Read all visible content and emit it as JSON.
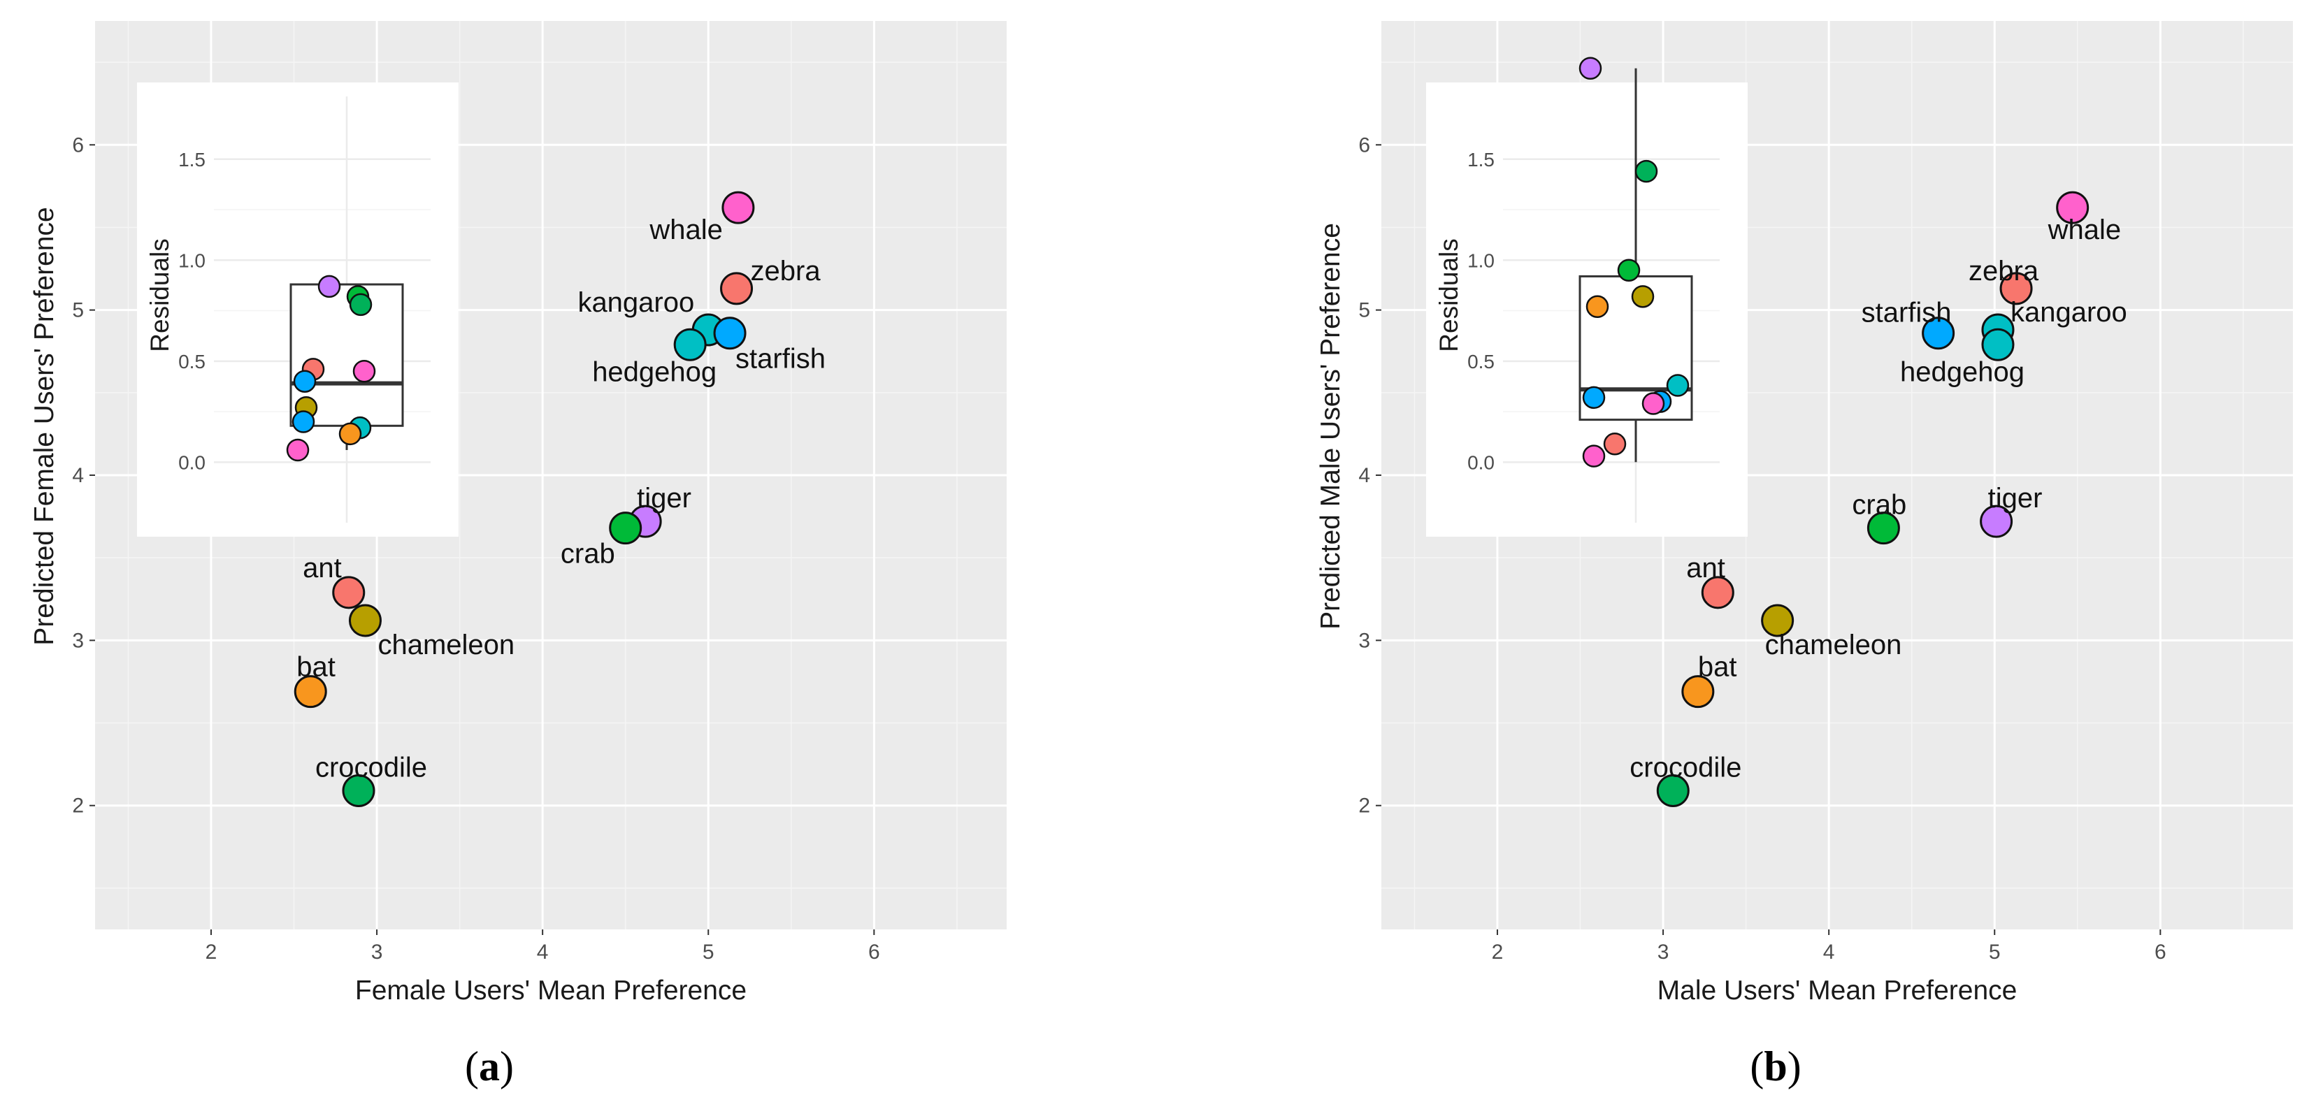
{
  "chart_data": [
    {
      "type": "scatter",
      "panel": "a",
      "title": "",
      "xlabel": "Female Users' Mean Preference",
      "ylabel": "Predicted Female Users' Preference",
      "xlim": [
        1.3,
        6.8
      ],
      "ylim": [
        1.25,
        6.75
      ],
      "xticks": [
        2,
        3,
        4,
        5,
        6
      ],
      "yticks": [
        2,
        3,
        4,
        5,
        6
      ],
      "points": [
        {
          "label": "whale",
          "x": 5.18,
          "y": 5.62,
          "color": "#FF61CC"
        },
        {
          "label": "zebra",
          "x": 5.17,
          "y": 5.13,
          "color": "#F8766D"
        },
        {
          "label": "kangaroo",
          "x": 5.0,
          "y": 4.88,
          "color": "#00BFC4"
        },
        {
          "label": "starfish",
          "x": 5.13,
          "y": 4.86,
          "color": "#00A9FF"
        },
        {
          "label": "hedgehog",
          "x": 4.89,
          "y": 4.79,
          "color": "#00BFC4"
        },
        {
          "label": "tiger",
          "x": 4.62,
          "y": 3.72,
          "color": "#C77CFF"
        },
        {
          "label": "crab",
          "x": 4.5,
          "y": 3.68,
          "color": "#00BA38"
        },
        {
          "label": "ant",
          "x": 2.83,
          "y": 3.29,
          "color": "#F8766D"
        },
        {
          "label": "chameleon",
          "x": 2.93,
          "y": 3.12,
          "color": "#B79F00"
        },
        {
          "label": "bat",
          "x": 2.6,
          "y": 2.69,
          "color": "#F8961E"
        },
        {
          "label": "crocodile",
          "x": 2.89,
          "y": 2.09,
          "color": "#00B159"
        }
      ],
      "inset": {
        "type": "box",
        "ylabel": "Residuals",
        "ylim": [
          -0.12,
          1.7
        ],
        "yticks": [
          0.0,
          0.5,
          1.0,
          1.5
        ],
        "box": {
          "whisker_low": 0.06,
          "q1": 0.18,
          "median": 0.39,
          "q3": 0.88,
          "whisker_high": 0.88
        },
        "points": [
          {
            "y": 0.87,
            "color": "#C77CFF",
            "jitter": -0.25
          },
          {
            "y": 0.82,
            "color": "#00BA38",
            "jitter": 0.16
          },
          {
            "y": 0.78,
            "color": "#00B159",
            "jitter": 0.2
          },
          {
            "y": 0.46,
            "color": "#F8766D",
            "jitter": -0.48
          },
          {
            "y": 0.45,
            "color": "#FF61CC",
            "jitter": 0.25
          },
          {
            "y": 0.4,
            "color": "#00A9FF",
            "jitter": -0.6
          },
          {
            "y": 0.27,
            "color": "#B79F00",
            "jitter": -0.58
          },
          {
            "y": 0.2,
            "color": "#00A9FF",
            "jitter": -0.62
          },
          {
            "y": 0.17,
            "color": "#00BFC4",
            "jitter": 0.19
          },
          {
            "y": 0.14,
            "color": "#F8961E",
            "jitter": 0.05
          },
          {
            "y": 0.06,
            "color": "#FF61CC",
            "jitter": -0.7
          }
        ]
      }
    },
    {
      "type": "scatter",
      "panel": "b",
      "title": "",
      "xlabel": "Male Users' Mean Preference",
      "ylabel": "Predicted Male Users' Preference",
      "xlim": [
        1.3,
        6.8
      ],
      "ylim": [
        1.25,
        6.75
      ],
      "xticks": [
        2,
        3,
        4,
        5,
        6
      ],
      "yticks": [
        2,
        3,
        4,
        5,
        6
      ],
      "points": [
        {
          "label": "whale",
          "x": 5.47,
          "y": 5.62,
          "color": "#FF61CC"
        },
        {
          "label": "zebra",
          "x": 5.13,
          "y": 5.13,
          "color": "#F8766D"
        },
        {
          "label": "kangaroo",
          "x": 5.02,
          "y": 4.88,
          "color": "#00BFC4"
        },
        {
          "label": "starfish",
          "x": 4.66,
          "y": 4.86,
          "color": "#00A9FF"
        },
        {
          "label": "hedgehog",
          "x": 5.02,
          "y": 4.79,
          "color": "#00BFC4"
        },
        {
          "label": "tiger",
          "x": 5.01,
          "y": 3.72,
          "color": "#C77CFF"
        },
        {
          "label": "crab",
          "x": 4.33,
          "y": 3.68,
          "color": "#00BA38"
        },
        {
          "label": "ant",
          "x": 3.33,
          "y": 3.29,
          "color": "#F8766D"
        },
        {
          "label": "chameleon",
          "x": 3.69,
          "y": 3.12,
          "color": "#B79F00"
        },
        {
          "label": "bat",
          "x": 3.21,
          "y": 2.69,
          "color": "#F8961E"
        },
        {
          "label": "crocodile",
          "x": 3.06,
          "y": 2.09,
          "color": "#00B159"
        }
      ],
      "inset": {
        "type": "box",
        "ylabel": "Residuals",
        "ylim": [
          -0.12,
          1.7
        ],
        "yticks": [
          0.0,
          0.5,
          1.0,
          1.5
        ],
        "box": {
          "whisker_low": 0.0,
          "q1": 0.21,
          "median": 0.36,
          "q3": 0.92,
          "whisker_high": 1.95
        },
        "points": [
          {
            "y": 1.95,
            "color": "#C77CFF",
            "jitter": -0.65
          },
          {
            "y": 1.44,
            "color": "#00B159",
            "jitter": 0.15
          },
          {
            "y": 0.95,
            "color": "#00BA38",
            "jitter": -0.1
          },
          {
            "y": 0.82,
            "color": "#B79F00",
            "jitter": 0.1
          },
          {
            "y": 0.77,
            "color": "#F8961E",
            "jitter": -0.55
          },
          {
            "y": 0.38,
            "color": "#00BFC4",
            "jitter": 0.6
          },
          {
            "y": 0.32,
            "color": "#00A9FF",
            "jitter": -0.6
          },
          {
            "y": 0.3,
            "color": "#00A9FF",
            "jitter": 0.35
          },
          {
            "y": 0.29,
            "color": "#FF61CC",
            "jitter": 0.25
          },
          {
            "y": 0.09,
            "color": "#F8766D",
            "jitter": -0.3
          },
          {
            "y": 0.03,
            "color": "#FF61CC",
            "jitter": -0.6
          }
        ]
      }
    }
  ],
  "panel_tags": [
    {
      "open": "(",
      "letter": "a",
      "close": ")"
    },
    {
      "open": "(",
      "letter": "b",
      "close": ")"
    }
  ]
}
